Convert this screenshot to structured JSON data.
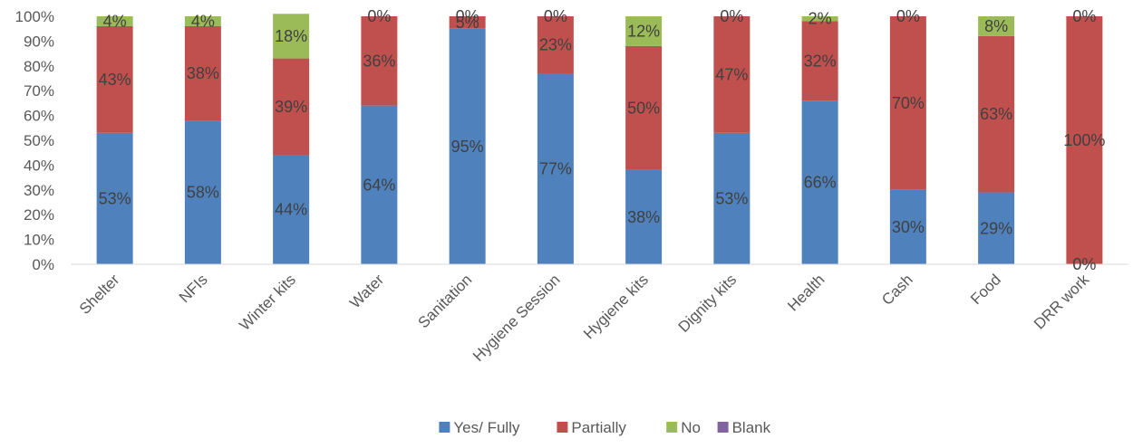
{
  "chart_data": {
    "type": "bar",
    "stacked": true,
    "percent": true,
    "categories": [
      "Shelter",
      "NFIs",
      "Winter kits",
      "Water",
      "Sanitation",
      "Hygiene Session",
      "Hygiene kits",
      "Dignity kits",
      "Health",
      "Cash",
      "Food",
      "DRR work"
    ],
    "series": [
      {
        "name": "Yes/ Fully",
        "color": "#4f81bd",
        "values": [
          53,
          58,
          44,
          64,
          95,
          77,
          38,
          53,
          66,
          30,
          29,
          0
        ],
        "labels": [
          "53%",
          "58%",
          "44%",
          "64%",
          "95%",
          "77%",
          "38%",
          "53%",
          "66%",
          "30%",
          "29%",
          "0%"
        ]
      },
      {
        "name": "Partially",
        "color": "#c0504d",
        "values": [
          43,
          38,
          39,
          36,
          5,
          23,
          50,
          47,
          32,
          70,
          63,
          100
        ],
        "labels": [
          "43%",
          "38%",
          "39%",
          "36%",
          "5%",
          "23%",
          "50%",
          "47%",
          "32%",
          "70%",
          "63%",
          "100%"
        ]
      },
      {
        "name": "No",
        "color": "#9bbb59",
        "values": [
          4,
          4,
          18,
          0,
          0,
          0,
          12,
          0,
          2,
          0,
          8,
          0
        ],
        "labels": [
          "4%",
          "4%",
          "18%",
          "0%",
          "0%",
          "0%",
          "12%",
          "0%",
          "2%",
          "0%",
          "8%",
          "0%"
        ]
      },
      {
        "name": "Blank",
        "color": "#8064a2",
        "values": [
          0,
          0,
          0,
          0,
          0,
          0,
          0,
          0,
          0,
          0,
          0,
          0
        ],
        "labels": []
      }
    ],
    "yticks": [
      "0%",
      "10%",
      "20%",
      "30%",
      "40%",
      "50%",
      "60%",
      "70%",
      "80%",
      "90%",
      "100%"
    ],
    "ylim": [
      0,
      100
    ],
    "title": "",
    "xlabel": "",
    "ylabel": "",
    "legend_position": "bottom",
    "grid": false
  }
}
